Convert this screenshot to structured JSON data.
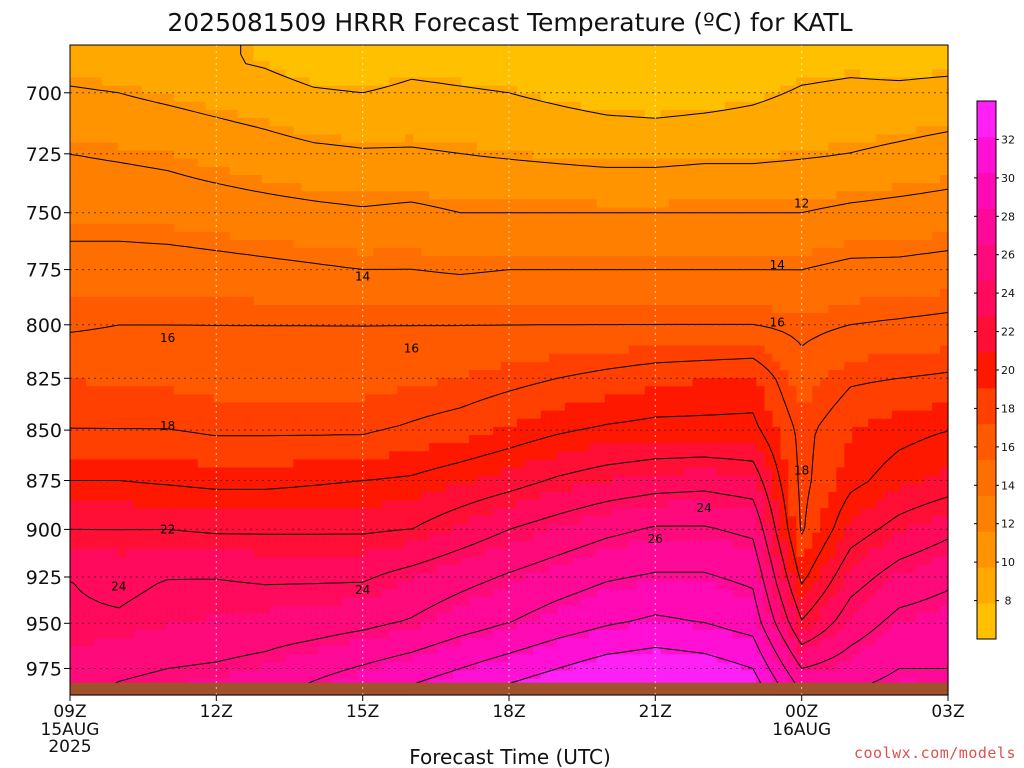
{
  "chart_data": {
    "type": "heatmap",
    "title": "2025081509 HRRR Forecast Temperature (ºC) for KATL",
    "xlabel": "Forecast Time (UTC)",
    "ylabel": "",
    "watermark": "coolwx.com/models",
    "x_ticks": [
      {
        "hour": 0,
        "label": "09Z",
        "sub": [
          "15AUG",
          "2025"
        ]
      },
      {
        "hour": 3,
        "label": "12Z",
        "sub": []
      },
      {
        "hour": 6,
        "label": "15Z",
        "sub": []
      },
      {
        "hour": 9,
        "label": "18Z",
        "sub": []
      },
      {
        "hour": 12,
        "label": "21Z",
        "sub": []
      },
      {
        "hour": 15,
        "label": "00Z",
        "sub": [
          "16AUG"
        ]
      },
      {
        "hour": 18,
        "label": "03Z",
        "sub": []
      }
    ],
    "y_ticks": [
      700,
      725,
      750,
      775,
      800,
      825,
      850,
      875,
      900,
      925,
      950,
      975
    ],
    "y_scale": "log-pressure",
    "ylim": [
      681,
      990
    ],
    "xlim": [
      0,
      18
    ],
    "grid": true,
    "colorbar": {
      "range": [
        6,
        34
      ],
      "labels": [
        8,
        10,
        12,
        14,
        16,
        18,
        20,
        22,
        24,
        26,
        28,
        30,
        32
      ],
      "colors": [
        "#FFC000",
        "#FFA800",
        "#FF9400",
        "#FF8000",
        "#FF6E00",
        "#FF5A00",
        "#FF4000",
        "#FF1800",
        "#FF0E36",
        "#FF0A5C",
        "#FF0A7A",
        "#FF0A98",
        "#FF0AB4",
        "#FF10D4",
        "#FF20F6"
      ]
    },
    "x": [
      0,
      1,
      2,
      3,
      4,
      5,
      6,
      7,
      8,
      9,
      10,
      11,
      12,
      13,
      14,
      15,
      16,
      17,
      18
    ],
    "levels": [
      975,
      950,
      925,
      900,
      875,
      850,
      825,
      800,
      775,
      750,
      725,
      700
    ],
    "temperature_rows": [
      {
        "p": 975,
        "t": [
          25.0,
          25.6,
          26.0,
          26.2,
          26.6,
          27.4,
          28.2,
          29.0,
          30.0,
          31.0,
          32.0,
          33.0,
          33.4,
          33.0,
          32.0,
          26.0,
          27.0,
          28.0,
          28.0
        ]
      },
      {
        "p": 950,
        "t": [
          24.2,
          24.2,
          24.6,
          24.8,
          25.0,
          25.2,
          25.6,
          26.2,
          27.2,
          28.0,
          29.0,
          29.8,
          30.4,
          30.0,
          29.2,
          22.2,
          25.0,
          26.6,
          27.0
        ]
      },
      {
        "p": 925,
        "t": [
          24.0,
          23.6,
          24.0,
          24.0,
          23.8,
          23.8,
          23.8,
          24.6,
          25.4,
          26.2,
          27.0,
          27.8,
          28.2,
          28.2,
          27.6,
          19.6,
          23.2,
          24.8,
          25.6
        ]
      },
      {
        "p": 900,
        "t": [
          22.0,
          22.0,
          22.0,
          21.8,
          21.8,
          21.8,
          21.8,
          22.0,
          23.0,
          24.0,
          24.8,
          25.6,
          26.2,
          26.2,
          25.6,
          17.8,
          21.2,
          22.6,
          23.6
        ]
      },
      {
        "p": 875,
        "t": [
          20.0,
          20.0,
          19.8,
          19.6,
          19.6,
          19.8,
          20.0,
          20.2,
          20.8,
          21.4,
          22.2,
          22.8,
          23.2,
          23.4,
          23.0,
          17.6,
          19.6,
          20.6,
          21.2
        ]
      },
      {
        "p": 850,
        "t": [
          18.0,
          18.0,
          18.0,
          17.8,
          17.8,
          17.8,
          17.8,
          18.2,
          18.6,
          19.2,
          19.8,
          20.2,
          20.4,
          20.4,
          20.4,
          17.6,
          19.0,
          19.6,
          20.0
        ]
      },
      {
        "p": 825,
        "t": [
          17.2,
          17.0,
          17.0,
          16.8,
          16.8,
          16.8,
          16.8,
          17.0,
          17.2,
          17.6,
          18.0,
          18.4,
          18.8,
          19.0,
          19.2,
          16.6,
          17.8,
          18.0,
          18.2
        ]
      },
      {
        "p": 800,
        "t": [
          15.8,
          16.0,
          16.0,
          16.0,
          16.0,
          16.0,
          16.0,
          16.0,
          16.0,
          16.0,
          16.0,
          16.0,
          16.0,
          16.0,
          16.0,
          15.6,
          16.0,
          16.2,
          16.4
        ]
      },
      {
        "p": 775,
        "t": [
          14.8,
          14.8,
          14.8,
          14.6,
          14.4,
          14.2,
          14.0,
          14.0,
          13.8,
          14.0,
          14.0,
          14.0,
          14.0,
          14.0,
          14.0,
          14.0,
          14.4,
          14.4,
          14.6
        ]
      },
      {
        "p": 750,
        "t": [
          13.2,
          13.2,
          13.0,
          12.8,
          12.6,
          12.4,
          12.2,
          12.4,
          12.0,
          12.0,
          12.0,
          12.0,
          12.0,
          12.0,
          12.0,
          12.0,
          12.4,
          12.6,
          12.8
        ]
      },
      {
        "p": 725,
        "t": [
          12.0,
          11.8,
          11.6,
          11.2,
          10.8,
          10.4,
          10.2,
          10.2,
          10.0,
          9.8,
          9.6,
          9.4,
          9.4,
          9.6,
          9.6,
          9.8,
          10.0,
          10.4,
          10.8
        ]
      },
      {
        "p": 700,
        "t": [
          10.2,
          10.0,
          9.6,
          9.2,
          8.8,
          8.2,
          8.0,
          8.4,
          8.2,
          8.0,
          7.6,
          7.2,
          7.0,
          7.2,
          7.6,
          8.2,
          8.4,
          8.4,
          8.6
        ]
      }
    ],
    "contour_labels": [
      {
        "value": "16",
        "hour": 2.0,
        "p": 806
      },
      {
        "value": "14",
        "hour": 6.0,
        "p": 778
      },
      {
        "value": "16",
        "hour": 7.0,
        "p": 811
      },
      {
        "value": "12",
        "hour": 15.0,
        "p": 746
      },
      {
        "value": "14",
        "hour": 14.5,
        "p": 773
      },
      {
        "value": "16",
        "hour": 14.5,
        "p": 799
      },
      {
        "value": "18",
        "hour": 2.0,
        "p": 848
      },
      {
        "value": "22",
        "hour": 2.0,
        "p": 900
      },
      {
        "value": "24",
        "hour": 1.0,
        "p": 930
      },
      {
        "value": "24",
        "hour": 6.0,
        "p": 932
      },
      {
        "value": "24",
        "hour": 13.0,
        "p": 889
      },
      {
        "value": "26",
        "hour": 12.0,
        "p": 905
      },
      {
        "value": "18",
        "hour": 15.0,
        "p": 870
      }
    ],
    "ground_color": "#A0522D"
  }
}
